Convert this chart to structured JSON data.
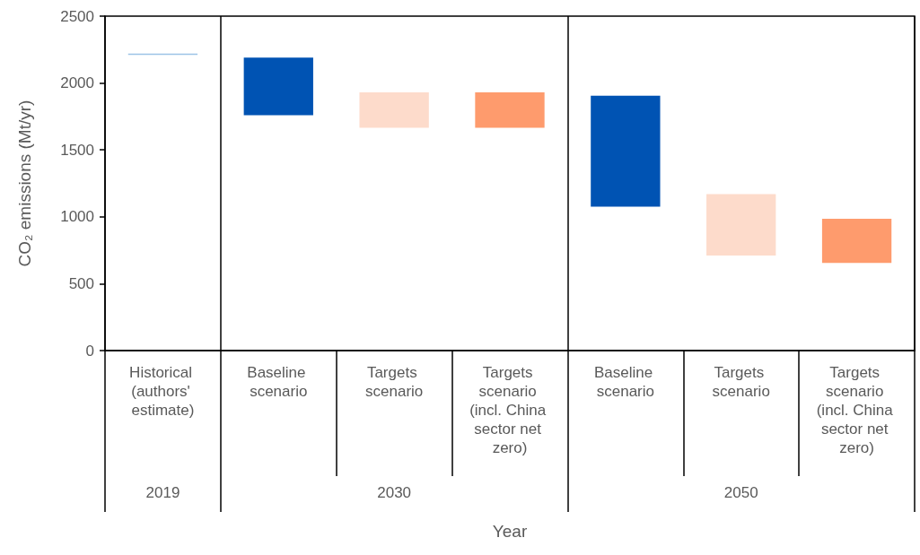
{
  "chart_data": {
    "type": "bar",
    "ylabel": "CO₂ emissions (Mt/yr)",
    "xlabel": "Year",
    "categories": [
      "Historical (authors' estimate)",
      "Baseline scenario",
      "Targets scenario",
      "Targets scenario (incl. China sector net zero)",
      "Baseline scenario",
      "Targets scenario",
      "Targets scenario (incl. China sector net zero)"
    ],
    "base": [
      2210,
      1760,
      1665,
      1665,
      1075,
      710,
      655
    ],
    "values": [
      10,
      430,
      265,
      265,
      830,
      460,
      330
    ],
    "colors": [
      "#9dc3e6",
      "#0053b3",
      "#fddbcb",
      "#fe9b6d",
      "#0053b3",
      "#fddbcb",
      "#fe9b6d"
    ],
    "ylim": [
      0,
      2500
    ],
    "yticks": [
      0,
      500,
      1000,
      1500,
      2000,
      2500
    ],
    "annotations": [
      "2019",
      "2030",
      "2050"
    ]
  }
}
